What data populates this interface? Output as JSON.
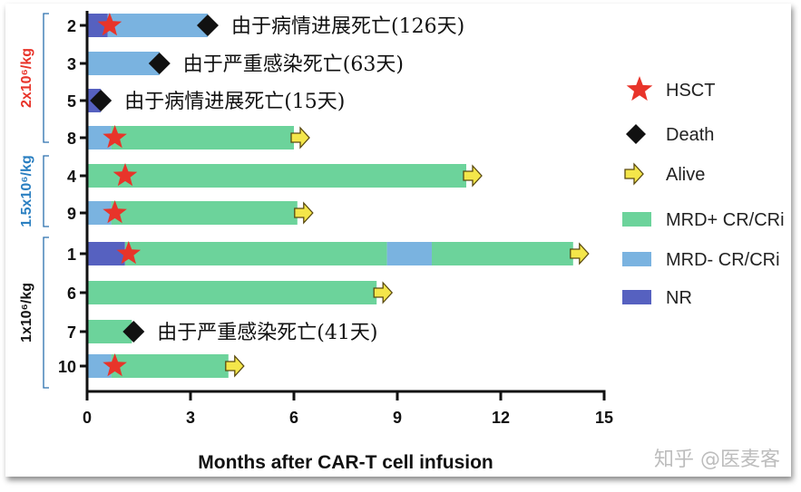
{
  "chart_data": {
    "type": "bar",
    "subtype": "swimmer",
    "xlabel": "Months after CAR-T cell infusion",
    "xlim": [
      0,
      15
    ],
    "xticks": [
      0,
      3,
      6,
      9,
      12,
      15
    ],
    "grid": false,
    "legend_position": "right",
    "colors": {
      "MRD+ CR/CRi": "#6cd39b",
      "MRD- CR/CRi": "#7ab3e0",
      "NR": "#5661c0",
      "HSCT": "#e8342a",
      "Death": "#111111",
      "Alive": "#f4e64a"
    },
    "legend": [
      {
        "label": "HSCT",
        "marker": "star"
      },
      {
        "label": "Death",
        "marker": "diamond"
      },
      {
        "label": "Alive",
        "marker": "arrow"
      },
      {
        "label": "MRD+ CR/CRi",
        "marker": "box"
      },
      {
        "label": "MRD- CR/CRi",
        "marker": "box"
      },
      {
        "label": "NR",
        "marker": "box"
      }
    ],
    "groups": [
      {
        "label": "2x10⁶/kg",
        "color": "#e8342a",
        "patients": [
          "2",
          "3",
          "5",
          "8"
        ]
      },
      {
        "label": "1.5x10⁶/kg",
        "color": "#2a7fc1",
        "patients": [
          "4",
          "9"
        ]
      },
      {
        "label": "1x10⁶/kg",
        "color": "#111111",
        "patients": [
          "1",
          "6",
          "7",
          "10"
        ]
      }
    ],
    "patients": [
      {
        "id": "2",
        "segments": [
          {
            "state": "NR",
            "start": 0,
            "end": 0.6
          },
          {
            "state": "MRD- CR/CRi",
            "start": 0.6,
            "end": 3.5
          }
        ],
        "hsct": 0.55,
        "death": 3.5,
        "annotation": "由于病情进展死亡(126天)"
      },
      {
        "id": "3",
        "segments": [
          {
            "state": "MRD- CR/CRi",
            "start": 0,
            "end": 2.1
          }
        ],
        "death": 2.1,
        "annotation": "由于严重感染死亡(63天)"
      },
      {
        "id": "5",
        "segments": [
          {
            "state": "NR",
            "start": 0,
            "end": 0.4
          }
        ],
        "death": 0.4,
        "annotation": "由于病情进展死亡(15天)"
      },
      {
        "id": "8",
        "segments": [
          {
            "state": "MRD- CR/CRi",
            "start": 0,
            "end": 0.7
          },
          {
            "state": "MRD+ CR/CRi",
            "start": 0.7,
            "end": 6.0
          }
        ],
        "hsct": 0.7,
        "alive": 6.0
      },
      {
        "id": "4",
        "segments": [
          {
            "state": "MRD+ CR/CRi",
            "start": 0,
            "end": 11.0
          }
        ],
        "hsct": 1.0,
        "alive": 11.0
      },
      {
        "id": "9",
        "segments": [
          {
            "state": "MRD- CR/CRi",
            "start": 0,
            "end": 0.7
          },
          {
            "state": "MRD+ CR/CRi",
            "start": 0.7,
            "end": 6.1
          }
        ],
        "hsct": 0.7,
        "alive": 6.1
      },
      {
        "id": "1",
        "segments": [
          {
            "state": "NR",
            "start": 0,
            "end": 1.1
          },
          {
            "state": "MRD+ CR/CRi",
            "start": 1.1,
            "end": 8.7
          },
          {
            "state": "MRD- CR/CRi",
            "start": 8.7,
            "end": 10.0
          },
          {
            "state": "MRD+ CR/CRi",
            "start": 10.0,
            "end": 14.1
          }
        ],
        "hsct": 1.1,
        "alive": 14.1
      },
      {
        "id": "6",
        "segments": [
          {
            "state": "MRD+ CR/CRi",
            "start": 0,
            "end": 8.4
          }
        ],
        "alive": 8.4
      },
      {
        "id": "7",
        "segments": [
          {
            "state": "MRD+ CR/CRi",
            "start": 0,
            "end": 1.3
          }
        ],
        "death": 1.35,
        "annotation": "由于严重感染死亡(41天)"
      },
      {
        "id": "10",
        "segments": [
          {
            "state": "MRD- CR/CRi",
            "start": 0,
            "end": 0.7
          },
          {
            "state": "MRD+ CR/CRi",
            "start": 0.7,
            "end": 4.1
          }
        ],
        "hsct": 0.7,
        "alive": 4.1
      }
    ]
  },
  "watermark": "知乎 @医麦客"
}
